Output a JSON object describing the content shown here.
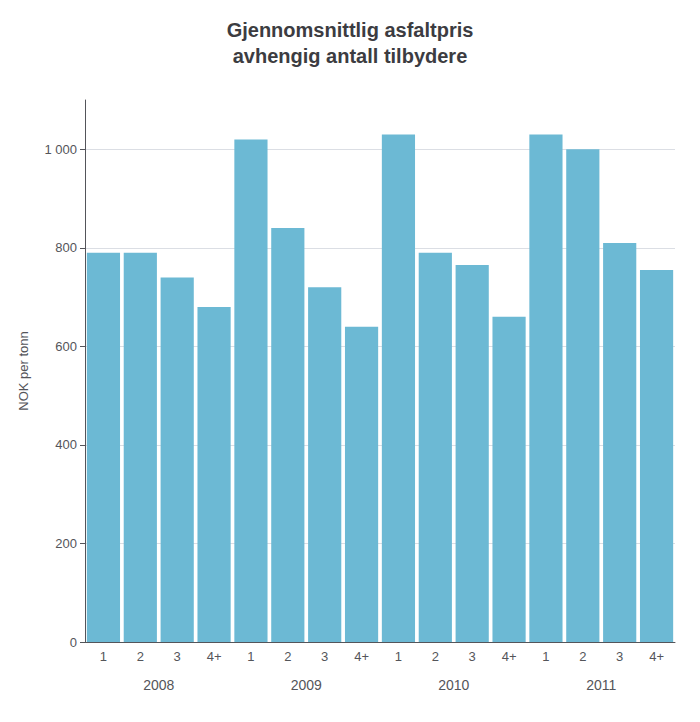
{
  "chart_data": {
    "type": "bar",
    "title": "Gjennomsnittlig asfaltpris\navhengig antall tilbydere",
    "y_label": "NOK per tonn",
    "categories": [
      "1",
      "2",
      "3",
      "4+",
      "1",
      "2",
      "3",
      "4+",
      "1",
      "2",
      "3",
      "4+",
      "1",
      "2",
      "3",
      "4+"
    ],
    "groups": [
      "2008",
      "2009",
      "2010",
      "2011"
    ],
    "values": [
      790,
      790,
      740,
      680,
      1020,
      840,
      720,
      640,
      1030,
      790,
      765,
      660,
      1030,
      1000,
      810,
      755
    ],
    "color": "#6cb9d4",
    "ylim": [
      0,
      1100
    ],
    "yticks": [
      0,
      200,
      400,
      600,
      800,
      {
        "value": 1000,
        "label": "1 000"
      }
    ],
    "grid": true
  }
}
